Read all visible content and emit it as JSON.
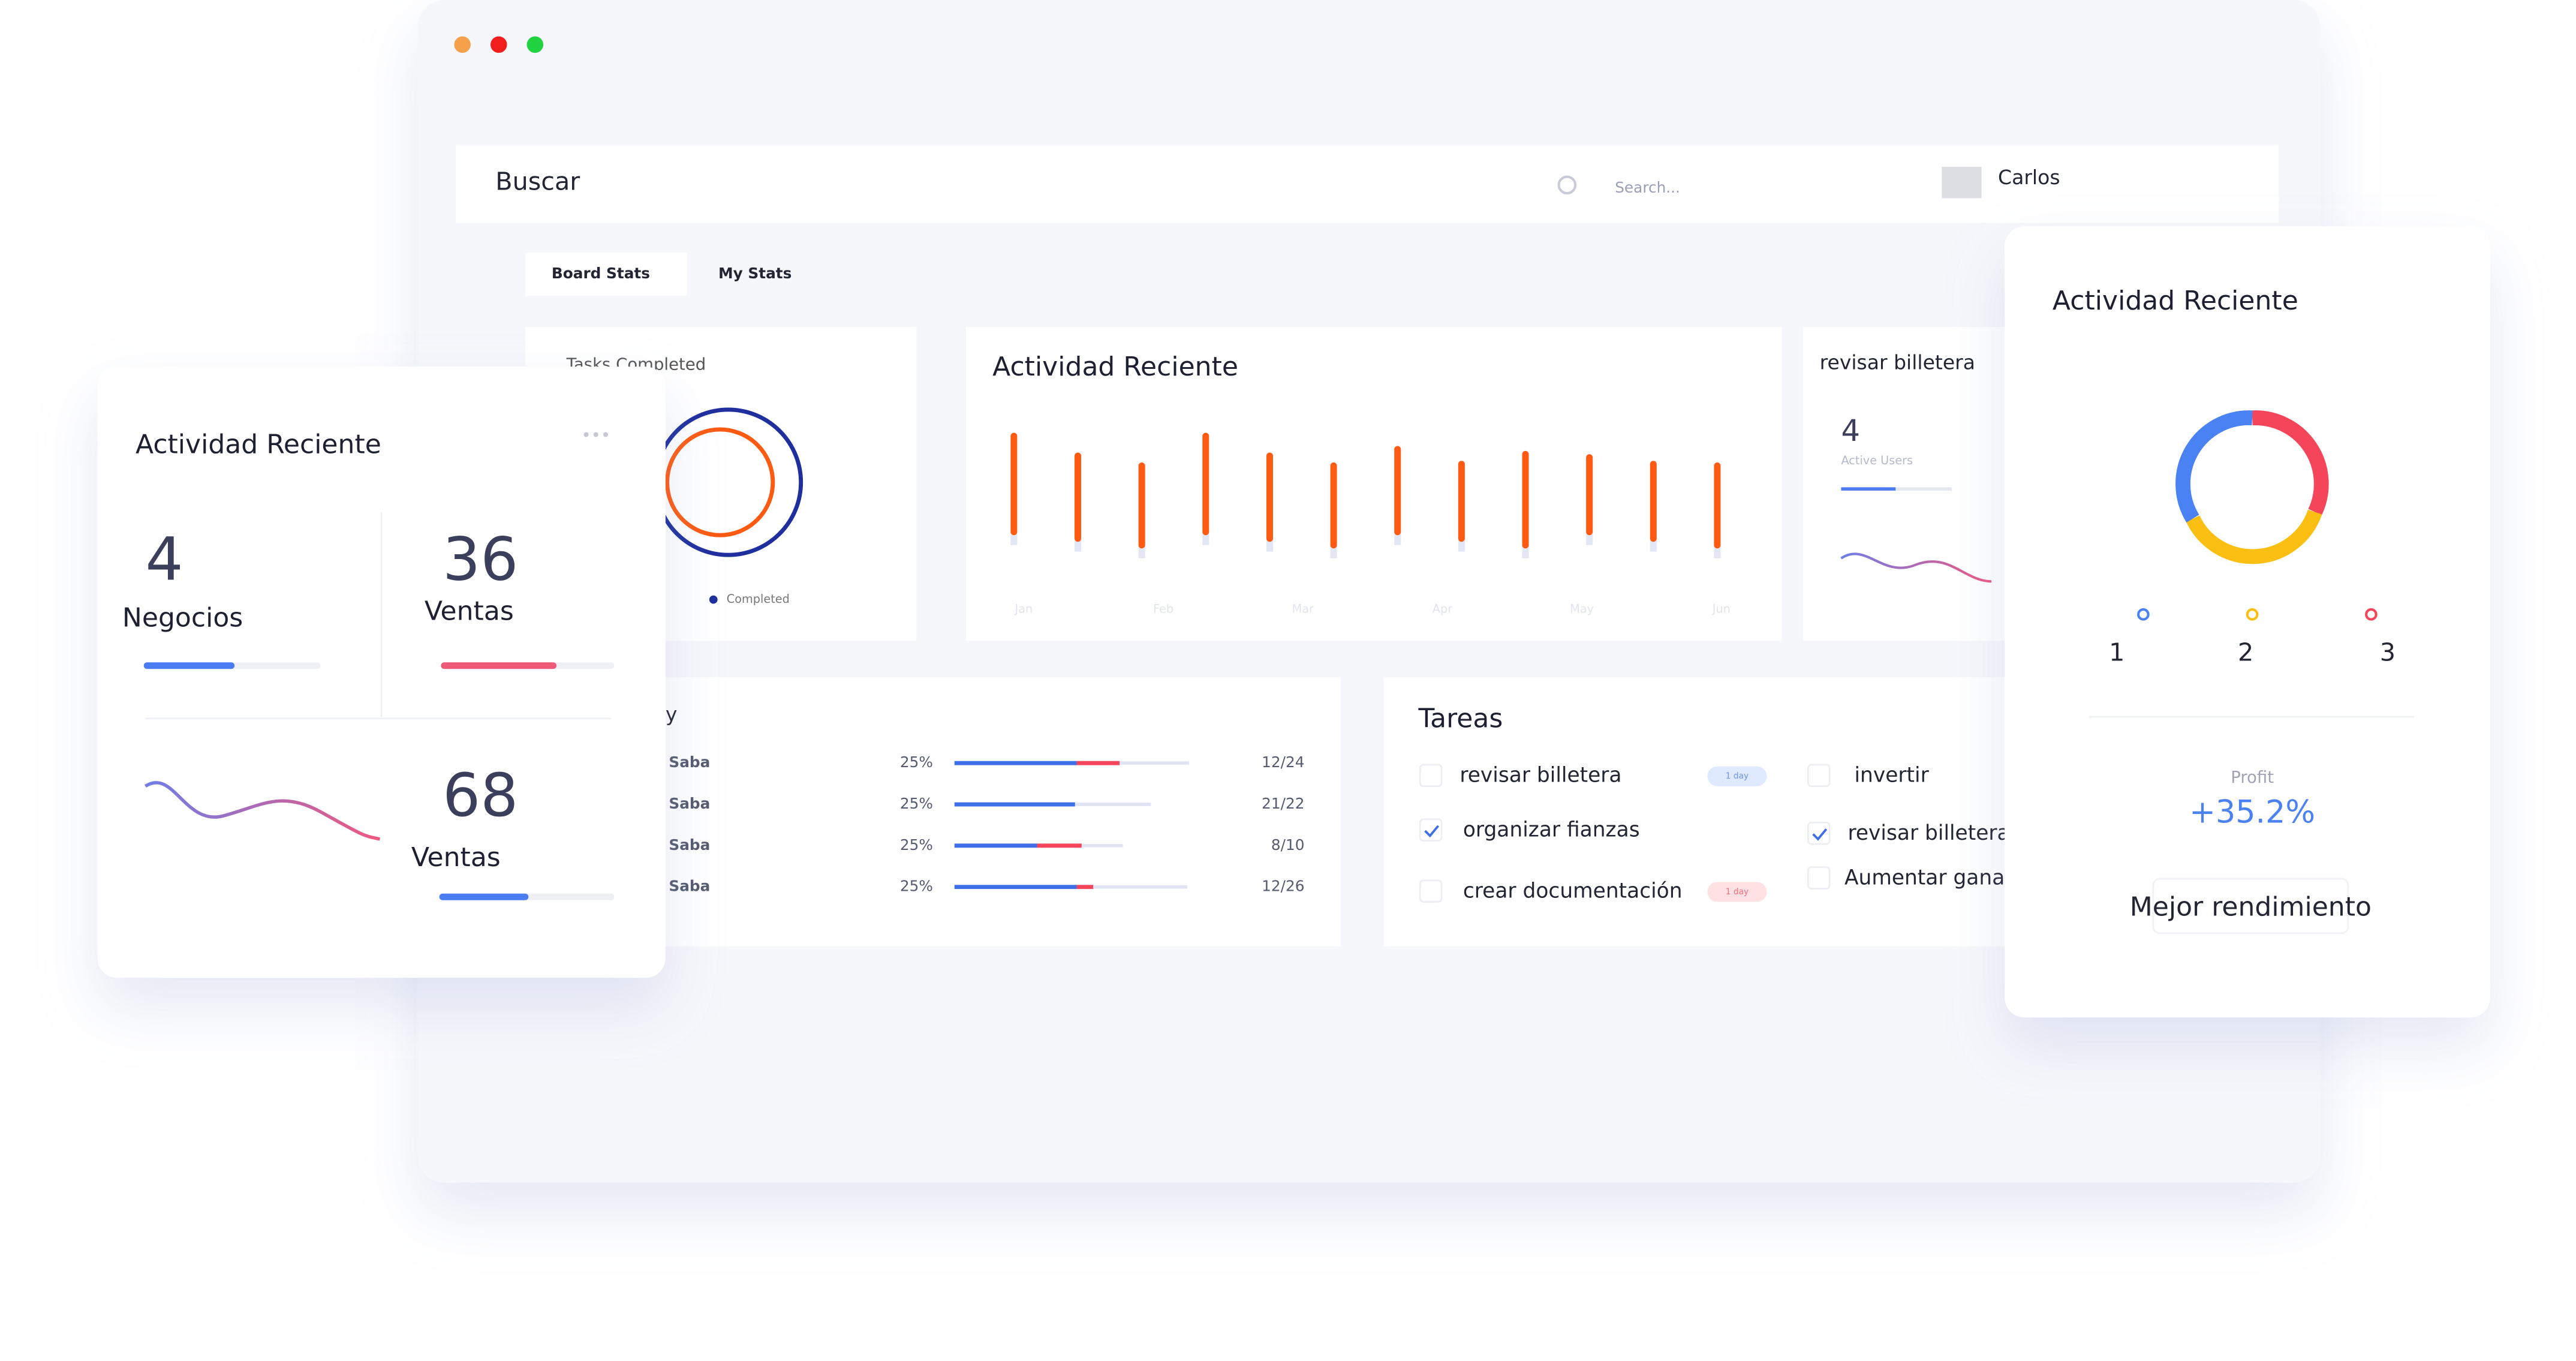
{
  "header": {
    "search_label": "Buscar",
    "search_placeholder": "Search...",
    "user": "Carlos"
  },
  "tabs": [
    "Board Stats",
    "My Stats"
  ],
  "tasks_completed": {
    "title": "Tasks Completed",
    "legend": "Completed"
  },
  "activity": {
    "title": "Actividad Reciente",
    "months": [
      "Jan",
      "Feb",
      "Mar",
      "Apr",
      "May",
      "Jun"
    ],
    "bars": [
      58,
      50,
      48,
      58,
      50,
      48,
      50,
      45,
      55,
      45,
      45,
      48
    ]
  },
  "users_card": {
    "title": "revisar billetera",
    "value": 4,
    "label": "Active Users"
  },
  "table": {
    "title": "y",
    "rows": [
      [
        "Saba",
        "25%",
        "12/24"
      ],
      [
        "Saba",
        "25%",
        "21/22"
      ],
      [
        "Saba",
        "25%",
        "8/10"
      ],
      [
        "Saba",
        "25%",
        "12/26"
      ]
    ]
  },
  "tareas": {
    "title": "Tareas",
    "items": [
      {
        "label": "revisar billetera",
        "checked": false,
        "badge": "1 day"
      },
      {
        "label": "organizar fianzas",
        "checked": true
      },
      {
        "label": "crear documentación",
        "checked": false,
        "badge": "1 day"
      },
      {
        "label": "invertir",
        "checked": false
      },
      {
        "label": "revisar billetera",
        "checked": true
      },
      {
        "label": "Aumentar ganan",
        "checked": false
      }
    ]
  },
  "left_card": {
    "title": "Actividad Reciente",
    "stats": [
      {
        "value": 4,
        "label": "Negocios"
      },
      {
        "value": 36,
        "label": "Ventas"
      },
      {
        "value": 68,
        "label": "Ventas"
      }
    ]
  },
  "right_card": {
    "title": "Actividad Reciente",
    "legend": [
      "1",
      "2",
      "3"
    ],
    "profit_label": "Profit",
    "profit_value": "+35.2%",
    "button": "Mejor rendimiento"
  }
}
